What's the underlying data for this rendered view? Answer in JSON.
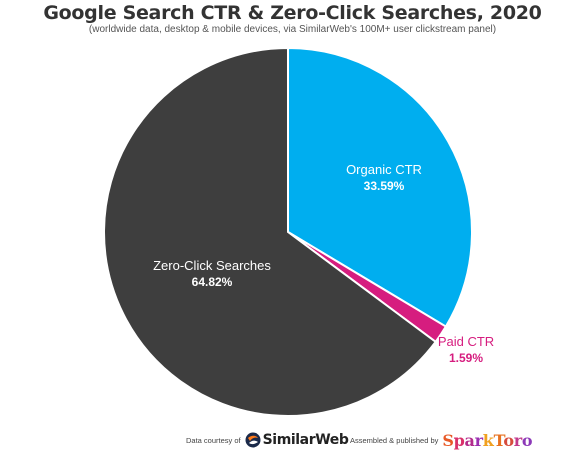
{
  "chart_data": {
    "type": "pie",
    "title": "Google Search CTR & Zero-Click Searches, 2020",
    "subtitle": "(worldwide data, desktop & mobile devices, via SimilarWeb's 100M+ user clickstream panel)",
    "slices": [
      {
        "label": "Organic CTR",
        "value": 33.59,
        "value_label": "33.59%",
        "color": "#00aeef",
        "label_color": "#ffffff"
      },
      {
        "label": "Paid CTR",
        "value": 1.59,
        "value_label": "1.59%",
        "color": "#d61d7f",
        "label_color": "#d61d7f"
      },
      {
        "label": "Zero-Click Searches",
        "value": 64.82,
        "value_label": "64.82%",
        "color": "#3e3e3e",
        "label_color": "#ffffff"
      }
    ],
    "start": "12 o'clock",
    "direction": "clockwise"
  },
  "footer": {
    "data_note": "Data courtesy of",
    "data_logo": "SimilarWeb",
    "assembled_note": "Assembled & published by",
    "publisher_logo": "SparkToro"
  }
}
